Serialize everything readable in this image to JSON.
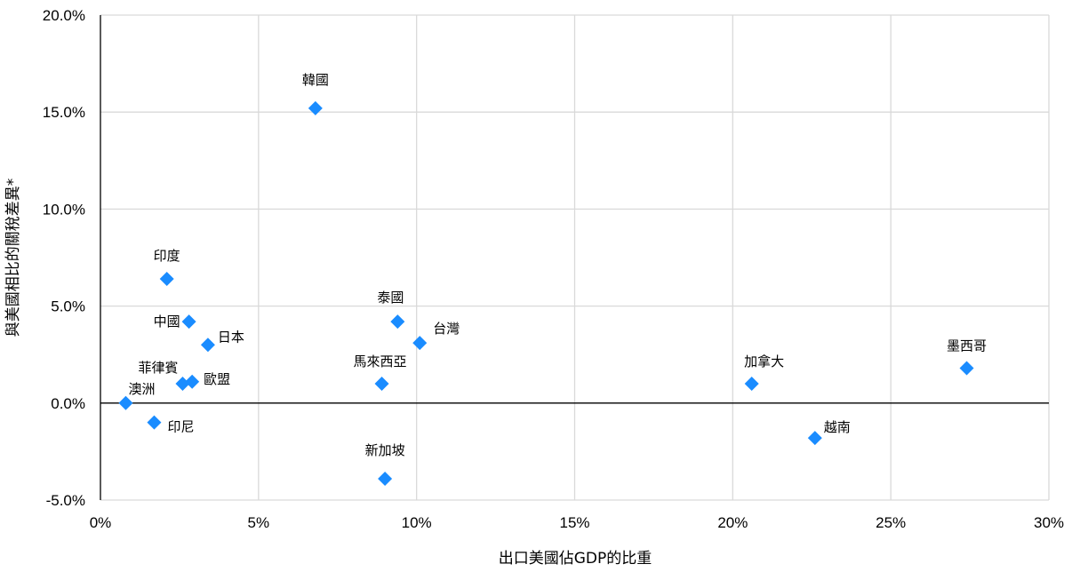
{
  "chart_data": {
    "type": "scatter",
    "xlabel": "出口美國佔GDP的比重",
    "ylabel": "與美國相比的關稅差異*",
    "xlim": [
      0,
      0.3
    ],
    "ylim": [
      -0.05,
      0.2
    ],
    "grid": true,
    "marker": "diamond",
    "color": "#1a8cff",
    "x_ticks": [
      "0%",
      "5%",
      "10%",
      "15%",
      "20%",
      "25%",
      "30%"
    ],
    "y_ticks": [
      "20.0%",
      "15.0%",
      "10.0%",
      "5.0%",
      "0.0%",
      "-5.0%"
    ],
    "points": [
      {
        "label": "韓國",
        "x": 0.068,
        "y": 0.152
      },
      {
        "label": "印度",
        "x": 0.021,
        "y": 0.064
      },
      {
        "label": "中國",
        "x": 0.028,
        "y": 0.042
      },
      {
        "label": "日本",
        "x": 0.034,
        "y": 0.03
      },
      {
        "label": "菲律賓",
        "x": 0.026,
        "y": 0.01
      },
      {
        "label": "歐盟",
        "x": 0.029,
        "y": 0.011
      },
      {
        "label": "澳洲",
        "x": 0.008,
        "y": 0.0
      },
      {
        "label": "印尼",
        "x": 0.017,
        "y": -0.01
      },
      {
        "label": "泰國",
        "x": 0.094,
        "y": 0.042
      },
      {
        "label": "台灣",
        "x": 0.101,
        "y": 0.031
      },
      {
        "label": "馬來西亞",
        "x": 0.089,
        "y": 0.01
      },
      {
        "label": "新加坡",
        "x": 0.09,
        "y": -0.039
      },
      {
        "label": "加拿大",
        "x": 0.206,
        "y": 0.01
      },
      {
        "label": "越南",
        "x": 0.226,
        "y": -0.018
      },
      {
        "label": "墨西哥",
        "x": 0.274,
        "y": 0.018
      }
    ]
  }
}
